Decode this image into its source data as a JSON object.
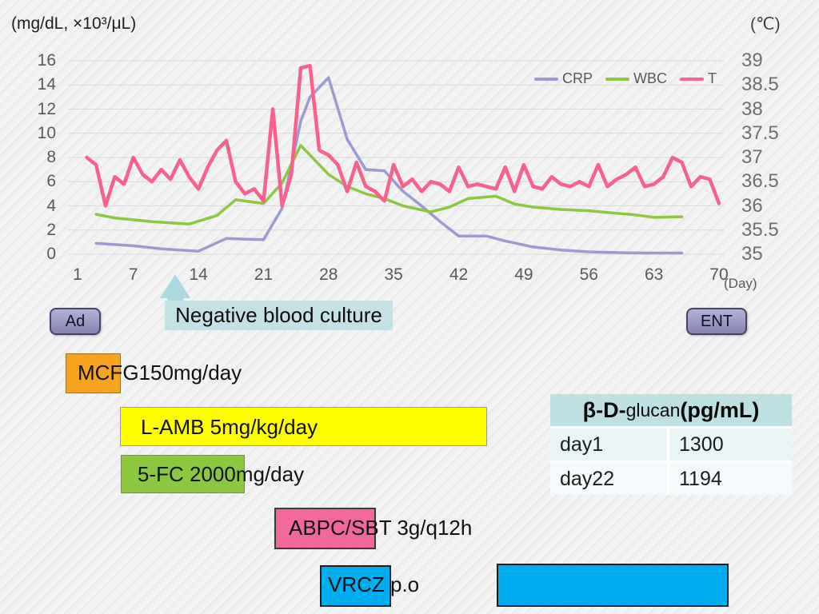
{
  "slide": {
    "left_axis_unit": "(mg/dL, ×10³/μL)",
    "right_axis_unit": "(℃)",
    "day_unit": "(Day)"
  },
  "chart_data": {
    "type": "line",
    "title": "",
    "grid": true,
    "legend_position": "top-right",
    "x": {
      "label": "(Day)",
      "range": [
        1,
        70
      ],
      "ticks": [
        1,
        7,
        14,
        21,
        28,
        35,
        42,
        49,
        56,
        63,
        70
      ]
    },
    "y_left": {
      "unit": "(mg/dL, ×10³/μL)",
      "range": [
        0,
        16
      ],
      "ticks": [
        0,
        2,
        4,
        6,
        8,
        10,
        12,
        14,
        16
      ]
    },
    "y_right": {
      "unit": "(℃)",
      "range": [
        35,
        39
      ],
      "ticks": [
        35,
        35.5,
        36,
        36.5,
        37,
        37.5,
        38,
        38.5,
        39
      ]
    },
    "series": [
      {
        "name": "CRP",
        "axis": "left",
        "color": "#9b9ad3",
        "points": [
          [
            3,
            0.9
          ],
          [
            4,
            0.85
          ],
          [
            7,
            0.7
          ],
          [
            10,
            0.45
          ],
          [
            14,
            0.25
          ],
          [
            17,
            1.3
          ],
          [
            19,
            1.25
          ],
          [
            21,
            1.2
          ],
          [
            23,
            3.8
          ],
          [
            25,
            11.0
          ],
          [
            26,
            13.0
          ],
          [
            28,
            14.6
          ],
          [
            30,
            9.5
          ],
          [
            32,
            7.0
          ],
          [
            34,
            6.9
          ],
          [
            36,
            5.2
          ],
          [
            38,
            4.0
          ],
          [
            40,
            2.7
          ],
          [
            42,
            1.5
          ],
          [
            45,
            1.5
          ],
          [
            47,
            1.1
          ],
          [
            50,
            0.6
          ],
          [
            53,
            0.35
          ],
          [
            56,
            0.2
          ],
          [
            60,
            0.12
          ],
          [
            63,
            0.1
          ],
          [
            66,
            0.1
          ]
        ]
      },
      {
        "name": "WBC",
        "axis": "left",
        "color": "#8dc63f",
        "points": [
          [
            3,
            3.3
          ],
          [
            5,
            3.0
          ],
          [
            9,
            2.7
          ],
          [
            13,
            2.5
          ],
          [
            16,
            3.2
          ],
          [
            18,
            4.5
          ],
          [
            21,
            4.2
          ],
          [
            23,
            5.9
          ],
          [
            25,
            9.0
          ],
          [
            28,
            6.6
          ],
          [
            30,
            5.6
          ],
          [
            32,
            5.0
          ],
          [
            34,
            4.6
          ],
          [
            36,
            4.0
          ],
          [
            39,
            3.5
          ],
          [
            41,
            3.9
          ],
          [
            43,
            4.6
          ],
          [
            46,
            4.8
          ],
          [
            48,
            4.15
          ],
          [
            50,
            3.9
          ],
          [
            53,
            3.7
          ],
          [
            56,
            3.6
          ],
          [
            58,
            3.45
          ],
          [
            61,
            3.25
          ],
          [
            63,
            3.05
          ],
          [
            66,
            3.1
          ]
        ]
      },
      {
        "name": "T",
        "axis": "right",
        "color": "#f8618e",
        "points": [
          [
            2,
            37.0
          ],
          [
            3,
            36.85
          ],
          [
            4,
            36.0
          ],
          [
            5,
            36.6
          ],
          [
            6,
            36.45
          ],
          [
            7,
            37.0
          ],
          [
            8,
            36.65
          ],
          [
            9,
            36.5
          ],
          [
            10,
            36.75
          ],
          [
            11,
            36.55
          ],
          [
            12,
            36.95
          ],
          [
            13,
            36.6
          ],
          [
            14,
            36.35
          ],
          [
            15,
            36.8
          ],
          [
            16,
            37.15
          ],
          [
            17,
            37.35
          ],
          [
            18,
            36.5
          ],
          [
            19,
            36.25
          ],
          [
            20,
            36.35
          ],
          [
            21,
            36.1
          ],
          [
            22,
            38.0
          ],
          [
            23,
            36.0
          ],
          [
            24,
            36.65
          ],
          [
            25,
            38.85
          ],
          [
            26,
            38.9
          ],
          [
            27,
            37.15
          ],
          [
            28,
            37.05
          ],
          [
            29,
            36.85
          ],
          [
            30,
            36.3
          ],
          [
            31,
            36.9
          ],
          [
            32,
            36.4
          ],
          [
            33,
            36.3
          ],
          [
            34,
            36.1
          ],
          [
            35,
            36.85
          ],
          [
            36,
            36.4
          ],
          [
            37,
            36.55
          ],
          [
            38,
            36.3
          ],
          [
            39,
            36.5
          ],
          [
            40,
            36.45
          ],
          [
            41,
            36.3
          ],
          [
            42,
            36.8
          ],
          [
            43,
            36.4
          ],
          [
            44,
            36.45
          ],
          [
            45,
            36.4
          ],
          [
            46,
            36.35
          ],
          [
            47,
            36.8
          ],
          [
            48,
            36.3
          ],
          [
            49,
            36.85
          ],
          [
            50,
            36.4
          ],
          [
            51,
            36.35
          ],
          [
            52,
            36.6
          ],
          [
            53,
            36.45
          ],
          [
            54,
            36.4
          ],
          [
            55,
            36.5
          ],
          [
            56,
            36.4
          ],
          [
            57,
            36.85
          ],
          [
            58,
            36.4
          ],
          [
            59,
            36.55
          ],
          [
            60,
            36.65
          ],
          [
            61,
            36.8
          ],
          [
            62,
            36.4
          ],
          [
            63,
            36.45
          ],
          [
            64,
            36.6
          ],
          [
            65,
            37.0
          ],
          [
            66,
            36.9
          ],
          [
            67,
            36.4
          ],
          [
            68,
            36.6
          ],
          [
            69,
            36.55
          ],
          [
            70,
            36.05
          ]
        ]
      }
    ]
  },
  "markers": {
    "admission": "Ad",
    "discharge": "ENT",
    "blood_culture": "Negative blood culture"
  },
  "treatments": [
    {
      "label": "MCFG150mg/day",
      "color": "#f6a41f"
    },
    {
      "label": "L-AMB 5mg/kg/day",
      "color": "#ffff00"
    },
    {
      "label": "5-FC 2000mg/day",
      "color": "#8dc63f"
    },
    {
      "label": "ABPC/SBT 3g/q12h",
      "color": "#f2679c"
    },
    {
      "label": "VRCZ p.o",
      "color": "#00aeef"
    },
    {
      "label": "",
      "color": "#00aeef"
    }
  ],
  "glucan_table": {
    "title_bold_1": "β-D-",
    "title_regular": "glucan",
    "title_bold_2": "(pg/mL)",
    "rows": [
      {
        "day": "day1",
        "value": "1300"
      },
      {
        "day": "day22",
        "value": "1194"
      }
    ]
  }
}
